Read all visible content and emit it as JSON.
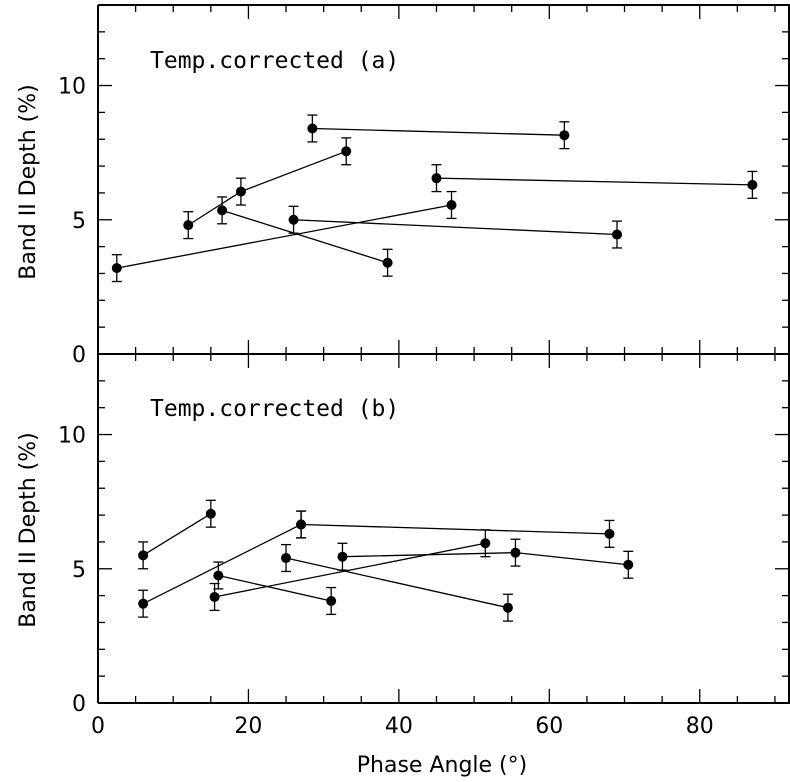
{
  "chart_data": {
    "type": "scatter",
    "xlabel": "Phase Angle (°)",
    "xlim": [
      0,
      92
    ],
    "x_ticks": [
      0,
      20,
      40,
      60,
      80
    ],
    "panels": [
      {
        "title": "Temp.corrected (a)",
        "ylabel": "Band II Depth (%)",
        "ylim": [
          0,
          13
        ],
        "y_ticks": [
          0,
          5,
          10
        ],
        "error": 0.5,
        "series": [
          {
            "x": [
              2.5,
              47
            ],
            "y": [
              3.2,
              5.55
            ]
          },
          {
            "x": [
              12,
              19,
              33
            ],
            "y": [
              4.8,
              6.05,
              7.55
            ]
          },
          {
            "x": [
              16.5,
              38.5
            ],
            "y": [
              5.35,
              3.4
            ]
          },
          {
            "x": [
              26,
              69
            ],
            "y": [
              5.0,
              4.45
            ]
          },
          {
            "x": [
              28.5,
              62
            ],
            "y": [
              8.4,
              8.15
            ]
          },
          {
            "x": [
              45,
              87
            ],
            "y": [
              6.55,
              6.3
            ]
          }
        ]
      },
      {
        "title": "Temp.corrected (b)",
        "ylabel": "Band II Depth (%)",
        "ylim": [
          0,
          13
        ],
        "y_ticks": [
          0,
          5,
          10
        ],
        "error": 0.5,
        "series": [
          {
            "x": [
              6,
              15
            ],
            "y": [
              5.5,
              7.05
            ]
          },
          {
            "x": [
              6,
              27
            ],
            "y": [
              3.7,
              6.65
            ]
          },
          {
            "x": [
              15.5,
              51.5
            ],
            "y": [
              3.95,
              5.95
            ]
          },
          {
            "x": [
              16,
              31
            ],
            "y": [
              4.75,
              3.8
            ]
          },
          {
            "x": [
              25,
              54.5
            ],
            "y": [
              5.4,
              3.55
            ]
          },
          {
            "x": [
              32.5,
              55.5,
              70.5
            ],
            "y": [
              5.45,
              5.6,
              5.15
            ]
          },
          {
            "x": [
              27,
              68
            ],
            "y": [
              6.65,
              6.3
            ]
          }
        ]
      }
    ]
  }
}
